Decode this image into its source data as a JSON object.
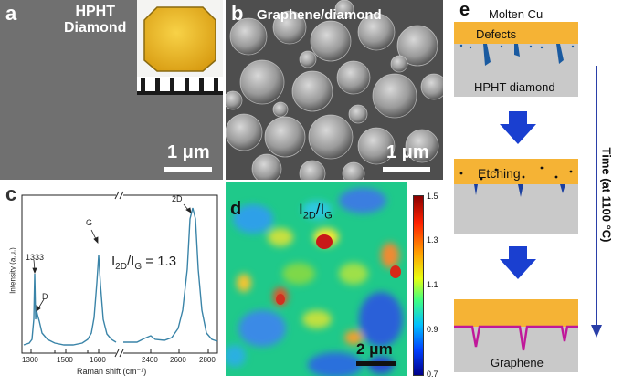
{
  "panel_a": {
    "label": "a",
    "title_line1": "HPHT",
    "title_line2": "Diamond",
    "scale": "1 μm"
  },
  "panel_b": {
    "label": "b",
    "title": "Graphene/diamond",
    "scale": "1 μm"
  },
  "panel_c": {
    "label": "c",
    "ratio_text": "I",
    "ratio_sub1": "2D",
    "ratio_mid": "/I",
    "ratio_sub2": "G",
    "ratio_value": " = 1.3",
    "peak_labels": [
      "1333",
      "D",
      "G",
      "2D"
    ],
    "xlabel": "Raman shift (cm⁻¹)",
    "ylabel": "Intensity (a.u.)",
    "xticks": [
      "1300",
      "1500",
      "1600",
      "2400",
      "2600",
      "2800"
    ]
  },
  "panel_d": {
    "label": "d",
    "title_main": "I",
    "title_sub1": "2D",
    "title_mid": "/I",
    "title_sub2": "G",
    "scale": "2 μm",
    "colorbar_ticks": [
      "1.5",
      "1.3",
      "1.1",
      "0.9",
      "0.7"
    ]
  },
  "panel_e": {
    "label": "e",
    "molten": "Molten Cu",
    "defects": "Defects",
    "diamond": "HPHT diamond",
    "etching": "Etching",
    "graphene": "Graphene",
    "time": "Time (at 1100 °C)"
  },
  "colors": {
    "cu": "#f5b335",
    "diamond": "#c9c9c9",
    "arrow": "#1a3fd0",
    "graphene": "#c0189a",
    "spectrum": "#3a84a8"
  }
}
